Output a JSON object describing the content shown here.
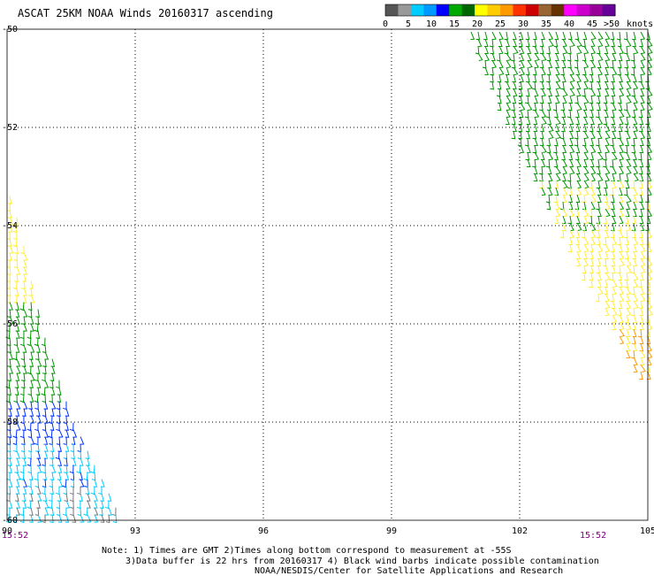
{
  "title": "ASCAT 25KM NOAA Winds 20160317 ascending",
  "colorbar": {
    "labels": [
      "0",
      "5",
      "10",
      "15",
      "20",
      "25",
      "30",
      "35",
      "40",
      "45",
      ">50"
    ],
    "units": "knots",
    "colors": [
      "#555555",
      "#999999",
      "#00ccff",
      "#0099ff",
      "#0000ff",
      "#00aa00",
      "#006600",
      "#ffff00",
      "#ffcc00",
      "#ff9900",
      "#ff3300",
      "#cc0000",
      "#996633",
      "#663300",
      "#ff00ff",
      "#cc00cc",
      "#990099",
      "#660099"
    ]
  },
  "time_labels": [
    "15:52",
    "15:52"
  ],
  "notes": [
    "Note: 1) Times are GMT 2)Times along bottom correspond to measurement at -55S",
    "3)Data buffer is 22 hrs from 20160317 4) Black wind barbs indicate possible contamination",
    "NOAA/NESDIS/Center for Satellite Applications and Research"
  ],
  "chart_data": {
    "type": "scatter",
    "title": "ASCAT 25KM NOAA Winds 20160317 ascending",
    "xlabel": "",
    "ylabel": "",
    "x_ticks": [
      "90",
      "93",
      "96",
      "99",
      "102",
      "105"
    ],
    "y_ticks": [
      "-50",
      "-52",
      "-54",
      "-56",
      "-58",
      "-60"
    ],
    "xlim": [
      90,
      105
    ],
    "ylim": [
      -60,
      -50
    ],
    "grid": true,
    "swaths": [
      {
        "name": "",
        "polygon_lonlat": [
          [
            90.0,
            -53.2
          ],
          [
            90.0,
            -60.0
          ],
          [
            92.7,
            -60.0
          ],
          [
            91.6,
            -58.0
          ],
          [
            90.8,
            -56.0
          ],
          [
            90.3,
            -54.0
          ]
        ],
        "speed_bands": [
          {
            "lat_range": [
              -55.5,
              -53.2
            ],
            "speed_knots": 22
          },
          {
            "lat_range": [
              -57.5,
              -55.5
            ],
            "speed_knots": 17
          },
          {
            "lat_range": [
              -58.3,
              -57.5
            ],
            "speed_knots": 12
          },
          {
            "lat_range": [
              -59.2,
              -58.3
            ],
            "speed_knots": 9
          },
          {
            "lat_range": [
              -60.0,
              -59.2
            ],
            "speed_knots": 6
          }
        ],
        "direction_deg": 280
      },
      {
        "name": "",
        "polygon_lonlat": [
          [
            100.8,
            -50.0
          ],
          [
            105.0,
            -50.0
          ],
          [
            105.0,
            -57.0
          ],
          [
            104.7,
            -57.0
          ],
          [
            101.5,
            -51.5
          ]
        ],
        "speed_bands": [
          {
            "lat_range": [
              -53.0,
              -50.0
            ],
            "speed_knots": 17
          },
          {
            "lat_range": [
              -54.0,
              -53.0
            ],
            "speed_knots": 20
          },
          {
            "lat_range": [
              -56.0,
              -54.0
            ],
            "speed_knots": 23
          },
          {
            "lat_range": [
              -57.0,
              -56.0
            ],
            "speed_knots": 26
          }
        ],
        "direction_deg": 290
      }
    ]
  }
}
